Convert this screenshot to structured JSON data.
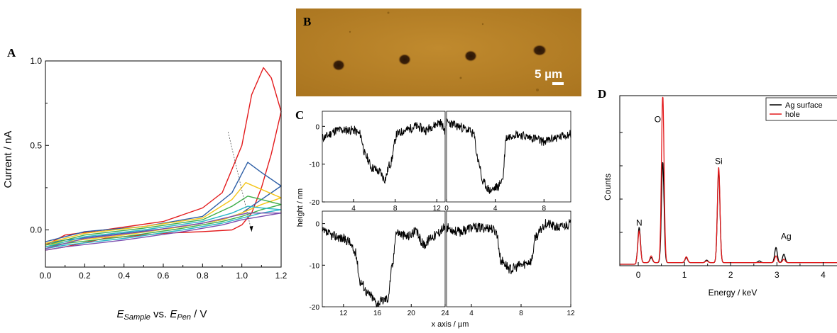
{
  "panels": {
    "A": {
      "letter": "A",
      "xlabel_main": "E",
      "xlabel_sub1": "Sample",
      "xlabel_mid": " vs. ",
      "xlabel_main2": "E",
      "xlabel_sub2": "Pen",
      "xlabel_tail": " / V",
      "ylabel": "Current / nA"
    },
    "B": {
      "letter": "B",
      "scalebar": "5 µm"
    },
    "C": {
      "letter": "C",
      "ylabel": "height / nm",
      "xlabel": "x axis / µm"
    },
    "D": {
      "letter": "D",
      "xlabel": "Energy / keV",
      "ylabel": "Counts"
    }
  },
  "chart_data": [
    {
      "id": "A",
      "type": "line",
      "xlim": [
        0,
        1.2
      ],
      "ylim": [
        -0.22,
        1.0
      ],
      "xticks": [
        "0.0",
        "0.2",
        "0.4",
        "0.6",
        "0.8",
        "1.0",
        "1.2"
      ],
      "xtick_values": [
        0,
        0.2,
        0.4,
        0.6,
        0.8,
        1.0,
        1.2
      ],
      "yticks": [
        "0.0",
        "0.5",
        "1.0"
      ],
      "ytick_values": [
        0,
        0.5,
        1.0
      ],
      "series": [
        {
          "color": "#e31a1c",
          "peak_x": 1.11,
          "peak_y": 0.96,
          "end_y": 0.7,
          "upper": [
            [
              0,
              -0.09
            ],
            [
              0.1,
              -0.03
            ],
            [
              0.3,
              0.0
            ],
            [
              0.6,
              0.05
            ],
            [
              0.8,
              0.13
            ],
            [
              0.9,
              0.22
            ],
            [
              1.0,
              0.5
            ],
            [
              1.05,
              0.8
            ],
            [
              1.11,
              0.96
            ],
            [
              1.15,
              0.9
            ],
            [
              1.2,
              0.7
            ]
          ],
          "lower": [
            [
              1.2,
              0.7
            ],
            [
              1.15,
              0.45
            ],
            [
              1.1,
              0.25
            ],
            [
              1.05,
              0.1
            ],
            [
              1.0,
              0.03
            ],
            [
              0.95,
              0.0
            ],
            [
              0.8,
              -0.01
            ],
            [
              0.6,
              -0.02
            ],
            [
              0.3,
              -0.05
            ],
            [
              0.1,
              -0.1
            ],
            [
              0,
              -0.12
            ]
          ]
        },
        {
          "color": "#2e5fa6",
          "upper": [
            [
              0,
              -0.07
            ],
            [
              0.2,
              -0.01
            ],
            [
              0.5,
              0.02
            ],
            [
              0.8,
              0.08
            ],
            [
              0.95,
              0.22
            ],
            [
              1.03,
              0.4
            ],
            [
              1.1,
              0.34
            ],
            [
              1.2,
              0.26
            ]
          ],
          "lower": [
            [
              1.2,
              0.26
            ],
            [
              1.1,
              0.18
            ],
            [
              1.0,
              0.1
            ],
            [
              0.9,
              0.06
            ],
            [
              0.7,
              0.02
            ],
            [
              0.4,
              -0.02
            ],
            [
              0.1,
              -0.06
            ],
            [
              0,
              -0.08
            ]
          ]
        },
        {
          "color": "#f5c518",
          "upper": [
            [
              0,
              -0.08
            ],
            [
              0.2,
              -0.02
            ],
            [
              0.5,
              0.02
            ],
            [
              0.8,
              0.07
            ],
            [
              0.95,
              0.18
            ],
            [
              1.02,
              0.28
            ],
            [
              1.1,
              0.24
            ],
            [
              1.2,
              0.19
            ]
          ],
          "lower": [
            [
              1.2,
              0.19
            ],
            [
              1.1,
              0.15
            ],
            [
              1.0,
              0.1
            ],
            [
              0.9,
              0.06
            ],
            [
              0.7,
              0.02
            ],
            [
              0.4,
              -0.03
            ],
            [
              0.1,
              -0.07
            ],
            [
              0,
              -0.09
            ]
          ]
        },
        {
          "color": "#3fae49",
          "upper": [
            [
              0,
              -0.09
            ],
            [
              0.2,
              -0.03
            ],
            [
              0.5,
              0.01
            ],
            [
              0.8,
              0.06
            ],
            [
              0.95,
              0.14
            ],
            [
              1.03,
              0.2
            ],
            [
              1.1,
              0.18
            ],
            [
              1.2,
              0.15
            ]
          ],
          "lower": [
            [
              1.2,
              0.15
            ],
            [
              1.1,
              0.12
            ],
            [
              1.0,
              0.08
            ],
            [
              0.9,
              0.05
            ],
            [
              0.7,
              0.01
            ],
            [
              0.4,
              -0.04
            ],
            [
              0.1,
              -0.08
            ],
            [
              0,
              -0.1
            ]
          ]
        },
        {
          "color": "#29b7c7",
          "upper": [
            [
              0,
              -0.1
            ],
            [
              0.2,
              -0.04
            ],
            [
              0.5,
              0.0
            ],
            [
              0.8,
              0.05
            ],
            [
              0.95,
              0.1
            ],
            [
              1.03,
              0.14
            ],
            [
              1.1,
              0.13
            ],
            [
              1.2,
              0.12
            ]
          ],
          "lower": [
            [
              1.2,
              0.12
            ],
            [
              1.1,
              0.1
            ],
            [
              1.0,
              0.07
            ],
            [
              0.9,
              0.04
            ],
            [
              0.7,
              0.0
            ],
            [
              0.4,
              -0.05
            ],
            [
              0.1,
              -0.09
            ],
            [
              0,
              -0.11
            ]
          ]
        },
        {
          "color": "#7b4fb0",
          "upper": [
            [
              0,
              -0.11
            ],
            [
              0.2,
              -0.05
            ],
            [
              0.5,
              -0.01
            ],
            [
              0.8,
              0.04
            ],
            [
              0.95,
              0.08
            ],
            [
              1.03,
              0.1
            ],
            [
              1.1,
              0.1
            ],
            [
              1.2,
              0.1
            ]
          ],
          "lower": [
            [
              1.2,
              0.1
            ],
            [
              1.1,
              0.08
            ],
            [
              1.0,
              0.06
            ],
            [
              0.9,
              0.03
            ],
            [
              0.7,
              -0.01
            ],
            [
              0.4,
              -0.06
            ],
            [
              0.1,
              -0.1
            ],
            [
              0,
              -0.12
            ]
          ]
        }
      ],
      "arrow": {
        "from": [
          0.93,
          0.58
        ],
        "to": [
          1.05,
          -0.01
        ]
      }
    },
    {
      "id": "C",
      "type": "line",
      "subplots": [
        {
          "xlim": [
            1,
            12.8
          ],
          "ylim": [
            -20,
            4
          ],
          "xticks": [
            "4",
            "8",
            "12"
          ],
          "xtick_values": [
            4,
            8,
            12
          ],
          "yticks": [
            "0",
            "-10",
            "-20"
          ],
          "ytick_values": [
            0,
            -10,
            -20
          ],
          "show_yticks": true,
          "profile": [
            [
              1,
              -3
            ],
            [
              2.5,
              -1
            ],
            [
              4,
              -1
            ],
            [
              4.6,
              -2
            ],
            [
              5.2,
              -8
            ],
            [
              5.8,
              -11
            ],
            [
              6.5,
              -12
            ],
            [
              7.0,
              -14
            ],
            [
              7.5,
              -10
            ],
            [
              8.2,
              -2
            ],
            [
              9,
              -1
            ],
            [
              10,
              0
            ],
            [
              11,
              -1
            ],
            [
              11.5,
              0
            ],
            [
              12.3,
              1
            ],
            [
              12.8,
              -1
            ]
          ],
          "seed": 11
        },
        {
          "xlim": [
            0,
            10.2
          ],
          "ylim": [
            -20,
            4
          ],
          "xticks": [
            "0",
            "4",
            "8"
          ],
          "xtick_values": [
            0,
            4,
            8
          ],
          "show_yticks": false,
          "profile": [
            [
              0,
              1
            ],
            [
              1,
              0
            ],
            [
              1.8,
              -1
            ],
            [
              2.2,
              -2
            ],
            [
              2.6,
              -9
            ],
            [
              3.0,
              -15
            ],
            [
              3.6,
              -17
            ],
            [
              4.2,
              -16
            ],
            [
              4.6,
              -14
            ],
            [
              4.9,
              -3
            ],
            [
              5.6,
              -2
            ],
            [
              7,
              -3
            ],
            [
              8,
              -4
            ],
            [
              9,
              -3
            ],
            [
              10.2,
              -2
            ]
          ],
          "seed": 23
        },
        {
          "xlim": [
            9.5,
            24
          ],
          "ylim": [
            -20,
            3
          ],
          "xticks": [
            "12",
            "16",
            "20",
            "24"
          ],
          "xtick_values": [
            12,
            16,
            20,
            24
          ],
          "yticks": [
            "0",
            "-10",
            "-20"
          ],
          "ytick_values": [
            0,
            -10,
            -20
          ],
          "show_yticks": true,
          "profile": [
            [
              9.5,
              -2
            ],
            [
              11,
              -3
            ],
            [
              12.5,
              -4
            ],
            [
              13.4,
              -7
            ],
            [
              14,
              -14
            ],
            [
              15,
              -17
            ],
            [
              16,
              -19
            ],
            [
              17.2,
              -18
            ],
            [
              17.8,
              -10
            ],
            [
              18.2,
              -2
            ],
            [
              19.5,
              -3
            ],
            [
              20.5,
              -2
            ],
            [
              21.5,
              -5
            ],
            [
              22.5,
              -3
            ],
            [
              24,
              -1
            ]
          ],
          "seed": 37
        },
        {
          "xlim": [
            2,
            12
          ],
          "ylim": [
            -20,
            3
          ],
          "xticks": [
            "4",
            "8",
            "12"
          ],
          "xtick_values": [
            4,
            8,
            12
          ],
          "show_yticks": false,
          "profile": [
            [
              2,
              -1
            ],
            [
              3,
              -2
            ],
            [
              4,
              -1
            ],
            [
              5.5,
              -1
            ],
            [
              6,
              -2
            ],
            [
              6.4,
              -9
            ],
            [
              7.2,
              -11
            ],
            [
              8,
              -10
            ],
            [
              8.8,
              -9
            ],
            [
              9.2,
              -3
            ],
            [
              10,
              0
            ],
            [
              11,
              -1
            ],
            [
              12,
              0
            ]
          ],
          "seed": 53
        }
      ]
    },
    {
      "id": "D",
      "type": "line",
      "xlim": [
        -0.4,
        4.3
      ],
      "ylim": [
        0,
        1.0
      ],
      "xticks": [
        "0",
        "1",
        "2",
        "3",
        "4"
      ],
      "xtick_values": [
        0,
        1,
        2,
        3,
        4
      ],
      "legend_position": "top-right",
      "series": [
        {
          "name": "Ag surface",
          "color": "#000000",
          "peaks": [
            [
              0.02,
              0.21
            ],
            [
              0.28,
              0.03
            ],
            [
              0.53,
              0.6
            ],
            [
              1.04,
              0.03
            ],
            [
              1.48,
              0.015
            ],
            [
              1.74,
              0.55
            ],
            [
              2.62,
              0.01
            ],
            [
              2.98,
              0.09
            ],
            [
              3.15,
              0.05
            ]
          ],
          "baseline": 0.01
        },
        {
          "name": "hole",
          "color": "#e31a1c",
          "peaks": [
            [
              0.02,
              0.19
            ],
            [
              0.28,
              0.04
            ],
            [
              0.53,
              1.0
            ],
            [
              1.04,
              0.035
            ],
            [
              1.48,
              0.01
            ],
            [
              1.74,
              0.57
            ],
            [
              2.98,
              0.04
            ],
            [
              3.15,
              0.02
            ]
          ],
          "baseline": 0.01
        }
      ],
      "peak_labels": [
        {
          "text": "N",
          "x": 0.02,
          "y": 0.23
        },
        {
          "text": "O",
          "x": 0.42,
          "y": 0.85
        },
        {
          "text": "Si",
          "x": 1.74,
          "y": 0.6
        },
        {
          "text": "Ag",
          "x": 3.2,
          "y": 0.15
        }
      ]
    }
  ]
}
